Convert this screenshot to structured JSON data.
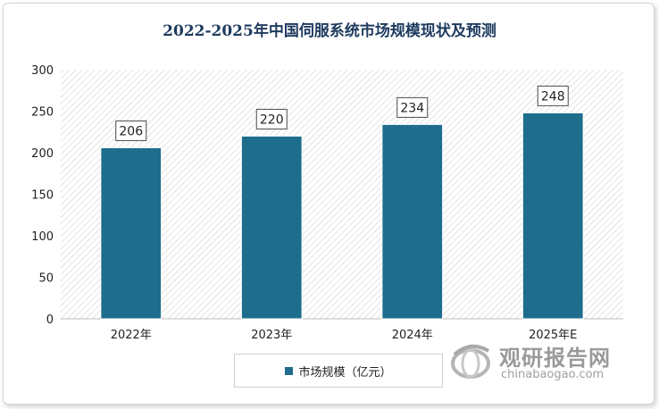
{
  "chart_data": {
    "type": "bar",
    "title": "2022-2025年中国伺服系统市场规模现状及预测",
    "categories": [
      "2022年",
      "2023年",
      "2024年",
      "2025年E"
    ],
    "series": [
      {
        "name": "市场规模（亿元）",
        "values": [
          206,
          220,
          234,
          248
        ]
      }
    ],
    "ylim": [
      0,
      300
    ],
    "yticks": [
      0,
      50,
      100,
      150,
      200,
      250,
      300
    ],
    "xlabel": "",
    "ylabel": "",
    "data_labels": true,
    "legend_position": "bottom",
    "grid": false,
    "bar_color": "#1e6d8d"
  },
  "watermark": {
    "name": "观研报告网",
    "url": "chinabaogao.com",
    "logo_icon": "globe-logo-icon"
  }
}
